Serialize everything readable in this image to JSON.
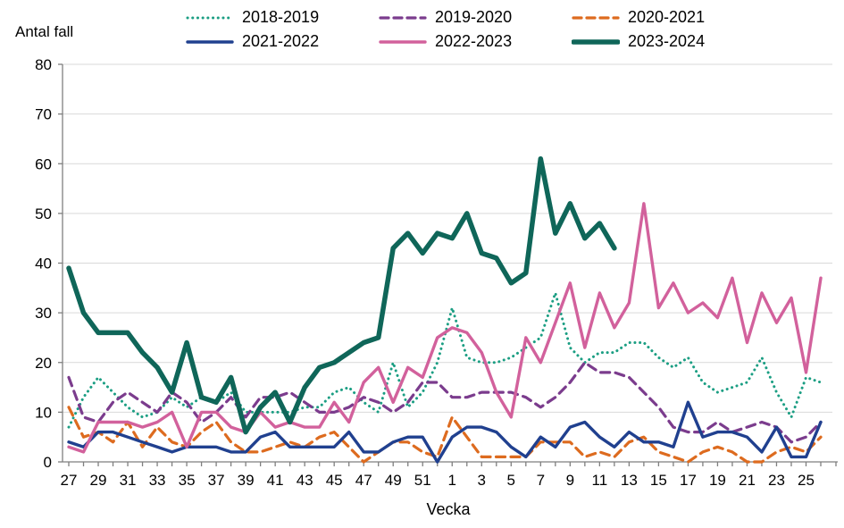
{
  "chart": {
    "y_axis_title": "Antal fall",
    "x_axis_title": "Vecka"
  },
  "legend": {
    "items": [
      {
        "label": "2018-2019",
        "color": "#1b9e83",
        "style": "dotted",
        "width": 3
      },
      {
        "label": "2019-2020",
        "color": "#7b3c8d",
        "style": "dashed",
        "width": 3.2
      },
      {
        "label": "2020-2021",
        "color": "#dd6b1f",
        "style": "dashed",
        "width": 3.2
      },
      {
        "label": "2021-2022",
        "color": "#20408f",
        "style": "solid",
        "width": 3.4
      },
      {
        "label": "2022-2023",
        "color": "#d2619c",
        "style": "solid",
        "width": 3.4
      },
      {
        "label": "2023-2024",
        "color": "#0f6659",
        "style": "solid",
        "width": 5.5
      }
    ]
  },
  "chart_data": {
    "type": "line",
    "title": "",
    "xlabel": "Vecka",
    "ylabel": "Antal fall",
    "ylim": [
      0,
      80
    ],
    "ytick_step": 10,
    "grid": "horizontal",
    "legend_position": "top",
    "x_weeks": [
      27,
      28,
      29,
      30,
      31,
      32,
      33,
      34,
      35,
      36,
      37,
      38,
      39,
      40,
      41,
      42,
      43,
      44,
      45,
      46,
      47,
      48,
      49,
      50,
      51,
      52,
      1,
      2,
      3,
      4,
      5,
      6,
      7,
      8,
      9,
      10,
      11,
      12,
      13,
      14,
      15,
      16,
      17,
      18,
      19,
      20,
      21,
      22,
      23,
      24,
      25,
      26
    ],
    "x_ticklabels": [
      27,
      29,
      31,
      33,
      35,
      37,
      39,
      41,
      43,
      45,
      47,
      49,
      51,
      1,
      3,
      5,
      7,
      9,
      11,
      13,
      15,
      17,
      19,
      21,
      23,
      25
    ],
    "series": [
      {
        "name": "2018-2019",
        "color": "#1b9e83",
        "style": "dotted",
        "width": 3,
        "values": [
          7,
          13,
          17,
          14,
          11,
          9,
          10,
          13,
          11,
          13,
          12,
          14,
          10,
          10,
          10,
          10,
          11,
          11,
          14,
          15,
          12,
          10,
          20,
          11,
          14,
          20,
          31,
          21,
          20,
          20,
          21,
          23,
          25,
          34,
          23,
          20,
          22,
          22,
          24,
          24,
          21,
          19,
          21,
          16,
          14,
          15,
          16,
          21,
          14,
          9,
          17,
          16
        ]
      },
      {
        "name": "2019-2020",
        "color": "#7b3c8d",
        "style": "dashed",
        "width": 3.2,
        "values": [
          17,
          9,
          8,
          12,
          14,
          12,
          10,
          14,
          12,
          8,
          10,
          13,
          9,
          13,
          13,
          14,
          12,
          10,
          10,
          11,
          13,
          12,
          10,
          12,
          16,
          16,
          13,
          13,
          14,
          14,
          14,
          13,
          11,
          13,
          16,
          20,
          18,
          18,
          17,
          14,
          11,
          7,
          6,
          6,
          8,
          6,
          7,
          8,
          7,
          4,
          5,
          8
        ]
      },
      {
        "name": "2020-2021",
        "color": "#dd6b1f",
        "style": "dashed",
        "width": 3.2,
        "values": [
          11,
          5,
          6,
          4,
          8,
          3,
          7,
          4,
          3,
          6,
          8,
          4,
          2,
          2,
          3,
          4,
          3,
          5,
          6,
          3,
          0,
          2,
          4,
          4,
          2,
          1,
          9,
          5,
          1,
          1,
          1,
          1,
          4,
          4,
          4,
          1,
          2,
          1,
          4,
          5,
          2,
          1,
          0,
          2,
          3,
          2,
          0,
          0,
          2,
          3,
          2,
          5
        ]
      },
      {
        "name": "2021-2022",
        "color": "#20408f",
        "style": "solid",
        "width": 3.4,
        "values": [
          4,
          3,
          6,
          6,
          5,
          4,
          3,
          2,
          3,
          3,
          3,
          2,
          2,
          5,
          6,
          3,
          3,
          3,
          3,
          6,
          2,
          2,
          4,
          5,
          5,
          0,
          5,
          7,
          7,
          6,
          3,
          1,
          5,
          3,
          7,
          8,
          5,
          3,
          6,
          4,
          4,
          3,
          12,
          5,
          6,
          6,
          5,
          2,
          7,
          1,
          1,
          8
        ]
      },
      {
        "name": "2022-2023",
        "color": "#d2619c",
        "style": "solid",
        "width": 3.4,
        "values": [
          3,
          2,
          8,
          8,
          8,
          7,
          8,
          10,
          3,
          10,
          10,
          7,
          6,
          10,
          7,
          8,
          7,
          7,
          12,
          8,
          16,
          19,
          12,
          19,
          17,
          25,
          27,
          26,
          22,
          14,
          9,
          25,
          20,
          28,
          36,
          23,
          34,
          27,
          32,
          52,
          31,
          36,
          30,
          32,
          29,
          37,
          24,
          34,
          28,
          33,
          18,
          37
        ]
      },
      {
        "name": "2023-2024",
        "color": "#0f6659",
        "style": "solid",
        "width": 5.5,
        "values": [
          39,
          30,
          26,
          26,
          26,
          22,
          19,
          14,
          24,
          13,
          12,
          17,
          6,
          11,
          14,
          8,
          15,
          19,
          20,
          22,
          24,
          25,
          43,
          46,
          42,
          46,
          45,
          50,
          42,
          41,
          36,
          38,
          61,
          46,
          52,
          45,
          48,
          43
        ]
      }
    ]
  },
  "colors": {
    "background": "#ffffff",
    "gridline": "#d9d9d9",
    "axis": "#7f7f7f",
    "text": "#000000"
  }
}
